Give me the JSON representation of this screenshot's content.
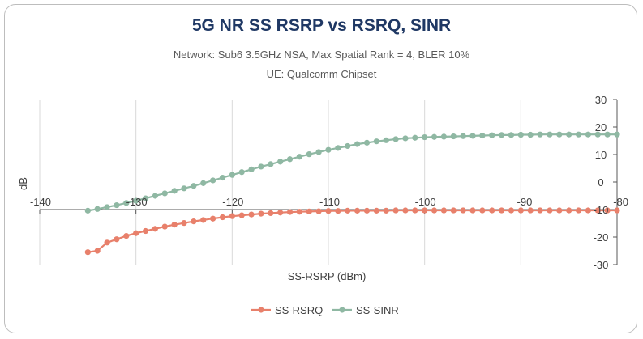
{
  "header": {
    "title": "5G NR SS RSRP vs RSRQ, SINR",
    "subtitle_1": "Network: Sub6 3.5GHz NSA, Max Spatial Rank = 4, BLER 10%",
    "subtitle_2": "UE: Qualcomm Chipset"
  },
  "colors": {
    "rsrq": "#e8806b",
    "sinr": "#8fb8a3",
    "grid": "#d9d9d9",
    "axis": "#595959"
  },
  "chart_data": {
    "type": "line",
    "title": "5G NR SS RSRP vs RSRQ, SINR",
    "xlabel": "SS-RSRP (dBm)",
    "ylabel": "dB",
    "xlim": [
      -140,
      -80
    ],
    "ylim": [
      -30,
      30
    ],
    "x_ticks": [
      -140,
      -130,
      -120,
      -110,
      -100,
      -90,
      -80
    ],
    "y_ticks": [
      30,
      20,
      10,
      0,
      -10,
      -20,
      -30
    ],
    "x_axis_crosses_y_at": -10,
    "y_axis_position": "right",
    "grid": "vertical",
    "legend": "bottom",
    "series": [
      {
        "name": "SS-RSRQ",
        "color": "#e8806b",
        "x": [
          -135,
          -134,
          -133,
          -132,
          -131,
          -130,
          -129,
          -128,
          -127,
          -126,
          -125,
          -124,
          -123,
          -122,
          -121,
          -120,
          -119,
          -118,
          -117,
          -116,
          -115,
          -114,
          -113,
          -112,
          -111,
          -110,
          -109,
          -108,
          -107,
          -106,
          -105,
          -104,
          -103,
          -102,
          -101,
          -100,
          -99,
          -98,
          -97,
          -96,
          -95,
          -94,
          -93,
          -92,
          -91,
          -90,
          -89,
          -88,
          -87,
          -86,
          -85,
          -84,
          -83,
          -82,
          -81,
          -80
        ],
        "y": [
          -25.5,
          -25.0,
          -22.0,
          -20.8,
          -19.6,
          -18.6,
          -17.8,
          -17.0,
          -16.2,
          -15.5,
          -14.9,
          -14.3,
          -13.8,
          -13.3,
          -12.8,
          -12.4,
          -12.1,
          -11.8,
          -11.5,
          -11.3,
          -11.1,
          -10.9,
          -10.8,
          -10.7,
          -10.6,
          -10.5,
          -10.5,
          -10.4,
          -10.4,
          -10.4,
          -10.4,
          -10.4,
          -10.3,
          -10.3,
          -10.3,
          -10.3,
          -10.3,
          -10.3,
          -10.3,
          -10.3,
          -10.3,
          -10.3,
          -10.3,
          -10.3,
          -10.3,
          -10.3,
          -10.3,
          -10.3,
          -10.3,
          -10.3,
          -10.3,
          -10.3,
          -10.3,
          -10.3,
          -10.3,
          -10.3
        ]
      },
      {
        "name": "SS-SINR",
        "color": "#8fb8a3",
        "x": [
          -135,
          -134,
          -133,
          -132,
          -131,
          -130,
          -129,
          -128,
          -127,
          -126,
          -125,
          -124,
          -123,
          -122,
          -121,
          -120,
          -119,
          -118,
          -117,
          -116,
          -115,
          -114,
          -113,
          -112,
          -111,
          -110,
          -109,
          -108,
          -107,
          -106,
          -105,
          -104,
          -103,
          -102,
          -101,
          -100,
          -99,
          -98,
          -97,
          -96,
          -95,
          -94,
          -93,
          -92,
          -91,
          -90,
          -89,
          -88,
          -87,
          -86,
          -85,
          -84,
          -83,
          -82,
          -81,
          -80
        ],
        "y": [
          -10.4,
          -9.8,
          -9.1,
          -8.4,
          -7.6,
          -6.8,
          -5.9,
          -5.0,
          -4.1,
          -3.2,
          -2.3,
          -1.4,
          -0.4,
          0.6,
          1.6,
          2.6,
          3.6,
          4.6,
          5.6,
          6.5,
          7.4,
          8.3,
          9.2,
          10.1,
          10.9,
          11.7,
          12.4,
          13.1,
          13.8,
          14.3,
          14.8,
          15.2,
          15.6,
          15.9,
          16.1,
          16.3,
          16.4,
          16.5,
          16.6,
          16.7,
          16.8,
          16.9,
          17.0,
          17.1,
          17.1,
          17.2,
          17.2,
          17.3,
          17.3,
          17.3,
          17.3,
          17.3,
          17.3,
          17.3,
          17.3,
          17.3
        ]
      }
    ]
  }
}
